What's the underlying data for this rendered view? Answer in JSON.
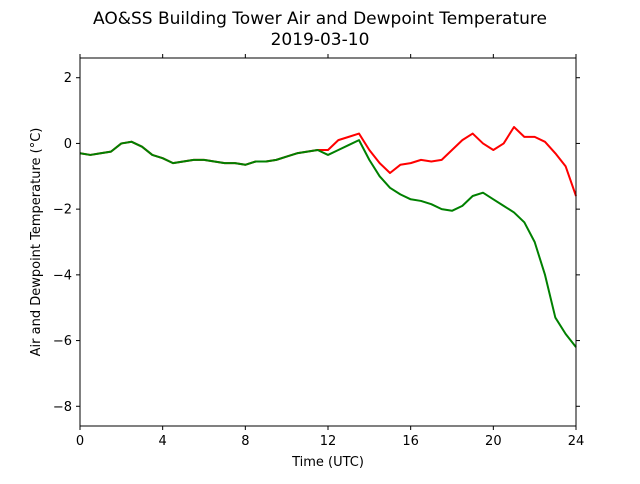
{
  "chart_data": {
    "type": "line",
    "title": "AO&SS Building Tower Air and Dewpoint Temperature",
    "subtitle": "2019-03-10",
    "xlabel": "Time (UTC)",
    "ylabel": "Air and Dewpoint Temperature (°C)",
    "xlim": [
      0,
      24
    ],
    "ylim": [
      -8.6,
      2.6
    ],
    "xticks": [
      0,
      4,
      8,
      12,
      16,
      20,
      24
    ],
    "yticks": [
      2,
      0,
      -2,
      -4,
      -6,
      -8
    ],
    "ytick_labels": [
      "2",
      "0",
      "−2",
      "−4",
      "−6",
      "−8"
    ],
    "grid": false,
    "legend": "none",
    "series": [
      {
        "color": "#ff0000",
        "x": [
          0,
          0.5,
          1.0,
          1.5,
          2.0,
          2.5,
          3.0,
          3.5,
          4.0,
          4.5,
          5.0,
          5.5,
          6.0,
          6.5,
          7.0,
          7.5,
          8.0,
          8.5,
          9.0,
          9.5,
          10.0,
          10.5,
          11.0,
          11.5,
          12.0,
          12.5,
          13.0,
          13.5,
          14.0,
          14.5,
          15.0,
          15.5,
          16.0,
          16.5,
          17.0,
          17.5,
          18.0,
          18.5,
          19.0,
          19.5,
          20.0,
          20.5,
          21.0,
          21.5,
          22.0,
          22.5,
          23.0,
          23.5,
          24.0
        ],
        "y": [
          -0.3,
          -0.35,
          -0.3,
          -0.25,
          0.0,
          0.05,
          -0.1,
          -0.35,
          -0.45,
          -0.6,
          -0.55,
          -0.5,
          -0.5,
          -0.55,
          -0.6,
          -0.6,
          -0.65,
          -0.55,
          -0.55,
          -0.5,
          -0.4,
          -0.3,
          -0.25,
          -0.2,
          -0.2,
          0.1,
          0.2,
          0.3,
          -0.2,
          -0.6,
          -0.9,
          -0.65,
          -0.6,
          -0.5,
          -0.55,
          -0.5,
          -0.2,
          0.1,
          0.3,
          0.0,
          -0.2,
          0.0,
          0.5,
          0.2,
          0.2,
          0.05,
          -0.3,
          -0.7,
          -1.6
        ]
      },
      {
        "color": "#008000",
        "x": [
          0,
          0.5,
          1.0,
          1.5,
          2.0,
          2.5,
          3.0,
          3.5,
          4.0,
          4.5,
          5.0,
          5.5,
          6.0,
          6.5,
          7.0,
          7.5,
          8.0,
          8.5,
          9.0,
          9.5,
          10.0,
          10.5,
          11.0,
          11.5,
          12.0,
          12.5,
          13.0,
          13.5,
          14.0,
          14.5,
          15.0,
          15.5,
          16.0,
          16.5,
          17.0,
          17.5,
          18.0,
          18.5,
          19.0,
          19.5,
          20.0,
          20.5,
          21.0,
          21.5,
          22.0,
          22.5,
          23.0,
          23.5,
          24.0
        ],
        "y": [
          -0.3,
          -0.35,
          -0.3,
          -0.25,
          0.0,
          0.05,
          -0.1,
          -0.35,
          -0.45,
          -0.6,
          -0.55,
          -0.5,
          -0.5,
          -0.55,
          -0.6,
          -0.6,
          -0.65,
          -0.55,
          -0.55,
          -0.5,
          -0.4,
          -0.3,
          -0.25,
          -0.2,
          -0.35,
          -0.2,
          -0.05,
          0.1,
          -0.5,
          -1.0,
          -1.35,
          -1.55,
          -1.7,
          -1.75,
          -1.85,
          -2.0,
          -2.05,
          -1.9,
          -1.6,
          -1.5,
          -1.7,
          -1.9,
          -2.1,
          -2.4,
          -3.0,
          -4.0,
          -5.3,
          -5.8,
          -6.2
        ]
      }
    ]
  }
}
